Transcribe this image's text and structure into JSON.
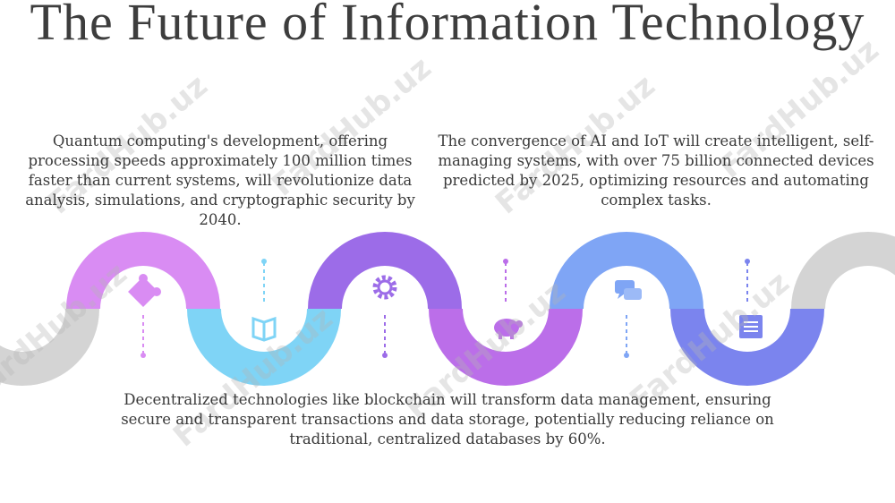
{
  "header": {
    "title": "The Future of Information Technology"
  },
  "paragraphs": [
    "Quantum computing's development, offering processing speeds approximately 100 million times faster than current systems, will revolutionize data analysis, simulations, and cryptographic security by 2040.",
    "The convergence of AI and IoT will create intelligent, self-managing systems, with over 75 billion connected devices predicted by 2025, optimizing resources and automating complex tasks.",
    "Decentralized technologies like blockchain will transform data management, ensuring secure and transparent transactions and data storage, potentially reducing reliance on traditional, centralized databases by 60%."
  ],
  "watermark": "FardHub.uz"
}
